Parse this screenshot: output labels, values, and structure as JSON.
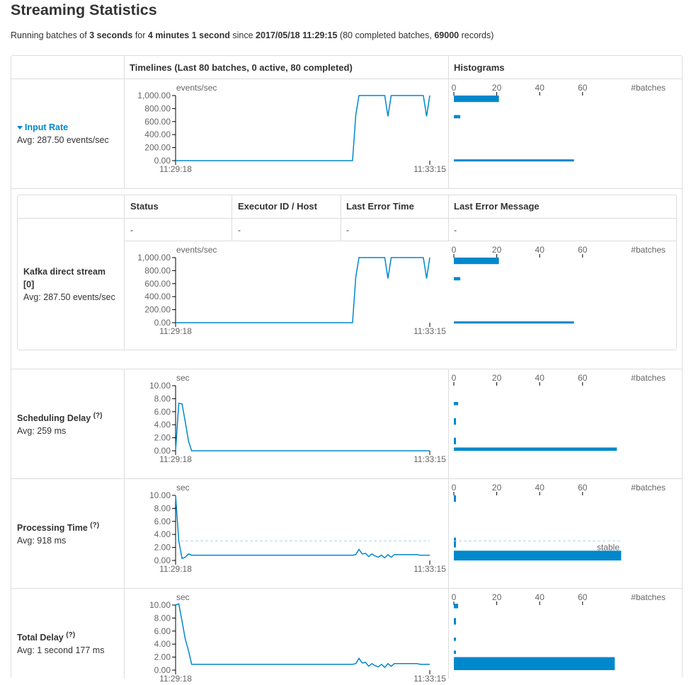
{
  "page": {
    "title": "Streaming Statistics",
    "summary": {
      "running_batches_of": "Running batches of ",
      "batch_interval": "3 seconds",
      "for": " for ",
      "duration": "4 minutes 1 second",
      "since": " since ",
      "start_time": "2017/05/18 11:29:15",
      "details_open": " (",
      "completed_batches": "80 completed batches",
      "comma": ", ",
      "records": "69000",
      "records_suffix": " records)"
    }
  },
  "table": {
    "header_timelines": "Timelines (Last 80 batches, 0 active, 80 completed)",
    "header_histograms": "Histograms"
  },
  "input_rate": {
    "label": "Input Rate",
    "avg": "Avg: 287.50 events/sec"
  },
  "receivers_table": {
    "headers": [
      "Status",
      "Executor ID / Host",
      "Last Error Time",
      "Last Error Message"
    ],
    "row": {
      "name_line1": "Kafka direct stream",
      "name_line2": "[0]",
      "avg": "Avg: 287.50 events/sec",
      "status": "-",
      "executor": "-",
      "last_error_time": "-",
      "last_error_message": "-"
    }
  },
  "scheduling_delay": {
    "label": "Scheduling Delay",
    "help": "(?)",
    "avg": "Avg: 259 ms"
  },
  "processing_time": {
    "label": "Processing Time",
    "help": "(?)",
    "avg": "Avg: 918 ms"
  },
  "total_delay": {
    "label": "Total Delay",
    "help": "(?)",
    "avg": "Avg: 1 second 177 ms"
  },
  "colors": {
    "series": "#0088cc",
    "grid_border": "#dddddd",
    "link": "#0088cc",
    "stable_line": "#a8d8f0"
  },
  "chart_data": [
    {
      "type": "line",
      "name": "input-rate-timeline",
      "unit": "events/sec",
      "x_labels": [
        "11:29:18",
        "11:33:15"
      ],
      "y_ticks": [
        "1,000.00",
        "800.00",
        "600.00",
        "400.00",
        "200.00",
        "0.00"
      ],
      "ylim": [
        0,
        1000
      ],
      "batches": 80,
      "values": [
        0,
        0,
        0,
        0,
        0,
        0,
        0,
        0,
        0,
        0,
        0,
        0,
        0,
        0,
        0,
        0,
        0,
        0,
        0,
        0,
        0,
        0,
        0,
        0,
        0,
        0,
        0,
        0,
        0,
        0,
        0,
        0,
        0,
        0,
        0,
        0,
        0,
        0,
        0,
        0,
        0,
        0,
        0,
        0,
        0,
        0,
        0,
        0,
        0,
        0,
        0,
        0,
        0,
        0,
        0,
        0,
        700,
        1000,
        1000,
        1000,
        1000,
        1000,
        1000,
        1000,
        1000,
        1000,
        680,
        1000,
        1000,
        1000,
        1000,
        1000,
        1000,
        1000,
        1000,
        1000,
        1000,
        1000,
        680,
        1000
      ]
    },
    {
      "type": "bar",
      "name": "input-rate-histogram",
      "axis_label": "#batches",
      "x_ticks": [
        "0",
        "20",
        "40",
        "60"
      ],
      "xlim": [
        0,
        76
      ],
      "bins": [
        {
          "value_from": 1000,
          "value_to": 900,
          "count": 21
        },
        {
          "value_from": 700,
          "value_to": 650,
          "count": 3
        },
        {
          "value_from": 20,
          "value_to": 0,
          "count": 56
        }
      ]
    },
    {
      "type": "line",
      "name": "kafka-stream-timeline",
      "unit": "events/sec",
      "x_labels": [
        "11:29:18",
        "11:33:15"
      ],
      "y_ticks": [
        "1,000.00",
        "800.00",
        "600.00",
        "400.00",
        "200.00",
        "0.00"
      ],
      "ylim": [
        0,
        1000
      ],
      "batches": 80,
      "values": [
        0,
        0,
        0,
        0,
        0,
        0,
        0,
        0,
        0,
        0,
        0,
        0,
        0,
        0,
        0,
        0,
        0,
        0,
        0,
        0,
        0,
        0,
        0,
        0,
        0,
        0,
        0,
        0,
        0,
        0,
        0,
        0,
        0,
        0,
        0,
        0,
        0,
        0,
        0,
        0,
        0,
        0,
        0,
        0,
        0,
        0,
        0,
        0,
        0,
        0,
        0,
        0,
        0,
        0,
        0,
        0,
        700,
        1000,
        1000,
        1000,
        1000,
        1000,
        1000,
        1000,
        1000,
        1000,
        680,
        1000,
        1000,
        1000,
        1000,
        1000,
        1000,
        1000,
        1000,
        1000,
        1000,
        1000,
        680,
        1000
      ]
    },
    {
      "type": "bar",
      "name": "kafka-stream-histogram",
      "axis_label": "#batches",
      "x_ticks": [
        "0",
        "20",
        "40",
        "60"
      ],
      "xlim": [
        0,
        76
      ],
      "bins": [
        {
          "value_from": 1000,
          "value_to": 900,
          "count": 21
        },
        {
          "value_from": 700,
          "value_to": 650,
          "count": 3
        },
        {
          "value_from": 20,
          "value_to": 0,
          "count": 56
        }
      ]
    },
    {
      "type": "line",
      "name": "scheduling-delay-timeline",
      "unit": "sec",
      "x_labels": [
        "11:29:18",
        "11:33:15"
      ],
      "y_ticks": [
        "10.00",
        "8.00",
        "6.00",
        "4.00",
        "2.00",
        "0.00"
      ],
      "ylim": [
        0,
        10
      ],
      "batches": 80,
      "values": [
        0,
        7.3,
        7.2,
        4.5,
        1.5,
        0,
        0,
        0,
        0,
        0,
        0,
        0,
        0,
        0,
        0,
        0,
        0,
        0,
        0,
        0,
        0,
        0,
        0,
        0,
        0,
        0,
        0,
        0,
        0,
        0,
        0,
        0,
        0,
        0,
        0,
        0,
        0,
        0,
        0,
        0,
        0,
        0,
        0,
        0,
        0,
        0,
        0,
        0,
        0,
        0,
        0,
        0,
        0,
        0,
        0,
        0,
        0,
        0,
        0,
        0,
        0,
        0,
        0,
        0,
        0,
        0,
        0,
        0,
        0,
        0,
        0,
        0,
        0,
        0,
        0,
        0,
        0,
        0,
        0,
        0
      ]
    },
    {
      "type": "bar",
      "name": "scheduling-delay-histogram",
      "axis_label": "#batches",
      "x_ticks": [
        "0",
        "20",
        "40",
        "60"
      ],
      "xlim": [
        0,
        76
      ],
      "bins": [
        {
          "value_from": 7.5,
          "value_to": 7.0,
          "count": 2
        },
        {
          "value_from": 5.0,
          "value_to": 4.0,
          "count": 1
        },
        {
          "value_from": 2.0,
          "value_to": 1.0,
          "count": 1
        },
        {
          "value_from": 0.5,
          "value_to": 0.0,
          "count": 76
        }
      ]
    },
    {
      "type": "line",
      "name": "processing-time-timeline",
      "unit": "sec",
      "x_labels": [
        "11:29:18",
        "11:33:15"
      ],
      "y_ticks": [
        "10.00",
        "8.00",
        "6.00",
        "4.00",
        "2.00",
        "0.00"
      ],
      "ylim": [
        0,
        10
      ],
      "batches": 80,
      "stable_value": 3.0,
      "stable_label": "stable",
      "values": [
        10,
        3,
        0.3,
        0.5,
        1.0,
        0.8,
        0.8,
        0.8,
        0.8,
        0.8,
        0.8,
        0.8,
        0.8,
        0.8,
        0.8,
        0.8,
        0.8,
        0.8,
        0.8,
        0.8,
        0.8,
        0.8,
        0.8,
        0.8,
        0.8,
        0.8,
        0.8,
        0.8,
        0.8,
        0.8,
        0.8,
        0.8,
        0.8,
        0.8,
        0.8,
        0.8,
        0.8,
        0.8,
        0.8,
        0.8,
        0.8,
        0.8,
        0.8,
        0.8,
        0.8,
        0.8,
        0.8,
        0.8,
        0.8,
        0.8,
        0.8,
        0.8,
        0.8,
        0.8,
        0.8,
        0.8,
        0.9,
        1.7,
        1.0,
        1.1,
        0.6,
        1.0,
        0.7,
        0.5,
        0.8,
        0.4,
        0.9,
        0.5,
        0.9,
        0.9,
        0.9,
        0.9,
        0.9,
        0.9,
        0.9,
        0.9,
        0.8,
        0.8,
        0.8,
        0.8
      ]
    },
    {
      "type": "bar",
      "name": "processing-time-histogram",
      "axis_label": "#batches",
      "x_ticks": [
        "0",
        "20",
        "40",
        "60"
      ],
      "xlim": [
        0,
        76
      ],
      "bins": [
        {
          "value_from": 10.0,
          "value_to": 9.0,
          "count": 1
        },
        {
          "value_from": 3.5,
          "value_to": 2.0,
          "count": 1
        },
        {
          "value_from": 1.5,
          "value_to": 0.0,
          "count": 78
        }
      ]
    },
    {
      "type": "line",
      "name": "total-delay-timeline",
      "unit": "sec",
      "x_labels": [
        "11:29:18",
        "11:33:15"
      ],
      "y_ticks": [
        "10.00",
        "8.00",
        "6.00",
        "4.00",
        "2.00",
        "0.00"
      ],
      "ylim": [
        0,
        10
      ],
      "batches": 80,
      "values": [
        10,
        10.2,
        7.5,
        4.8,
        3.0,
        0.9,
        0.9,
        0.9,
        0.9,
        0.9,
        0.9,
        0.9,
        0.9,
        0.9,
        0.9,
        0.9,
        0.9,
        0.9,
        0.9,
        0.9,
        0.9,
        0.9,
        0.9,
        0.9,
        0.9,
        0.9,
        0.9,
        0.9,
        0.9,
        0.9,
        0.9,
        0.9,
        0.9,
        0.9,
        0.9,
        0.9,
        0.9,
        0.9,
        0.9,
        0.9,
        0.9,
        0.9,
        0.9,
        0.9,
        0.9,
        0.9,
        0.9,
        0.9,
        0.9,
        0.9,
        0.9,
        0.9,
        0.9,
        0.9,
        0.9,
        0.9,
        1.0,
        1.8,
        1.1,
        1.2,
        0.6,
        1.0,
        0.7,
        0.5,
        0.9,
        0.4,
        1.0,
        0.6,
        1.0,
        1.0,
        1.0,
        1.0,
        1.0,
        1.0,
        1.0,
        1.0,
        0.9,
        0.9,
        0.9,
        0.9
      ]
    },
    {
      "type": "bar",
      "name": "total-delay-histogram",
      "axis_label": "#batches",
      "x_ticks": [
        "0",
        "20",
        "40",
        "60"
      ],
      "xlim": [
        0,
        76
      ],
      "bins": [
        {
          "value_from": 10.2,
          "value_to": 9.5,
          "count": 2
        },
        {
          "value_from": 8.0,
          "value_to": 7.0,
          "count": 1
        },
        {
          "value_from": 5.0,
          "value_to": 4.5,
          "count": 1
        },
        {
          "value_from": 3.0,
          "value_to": 2.5,
          "count": 1
        },
        {
          "value_from": 2.0,
          "value_to": 0.0,
          "count": 75
        }
      ]
    }
  ]
}
